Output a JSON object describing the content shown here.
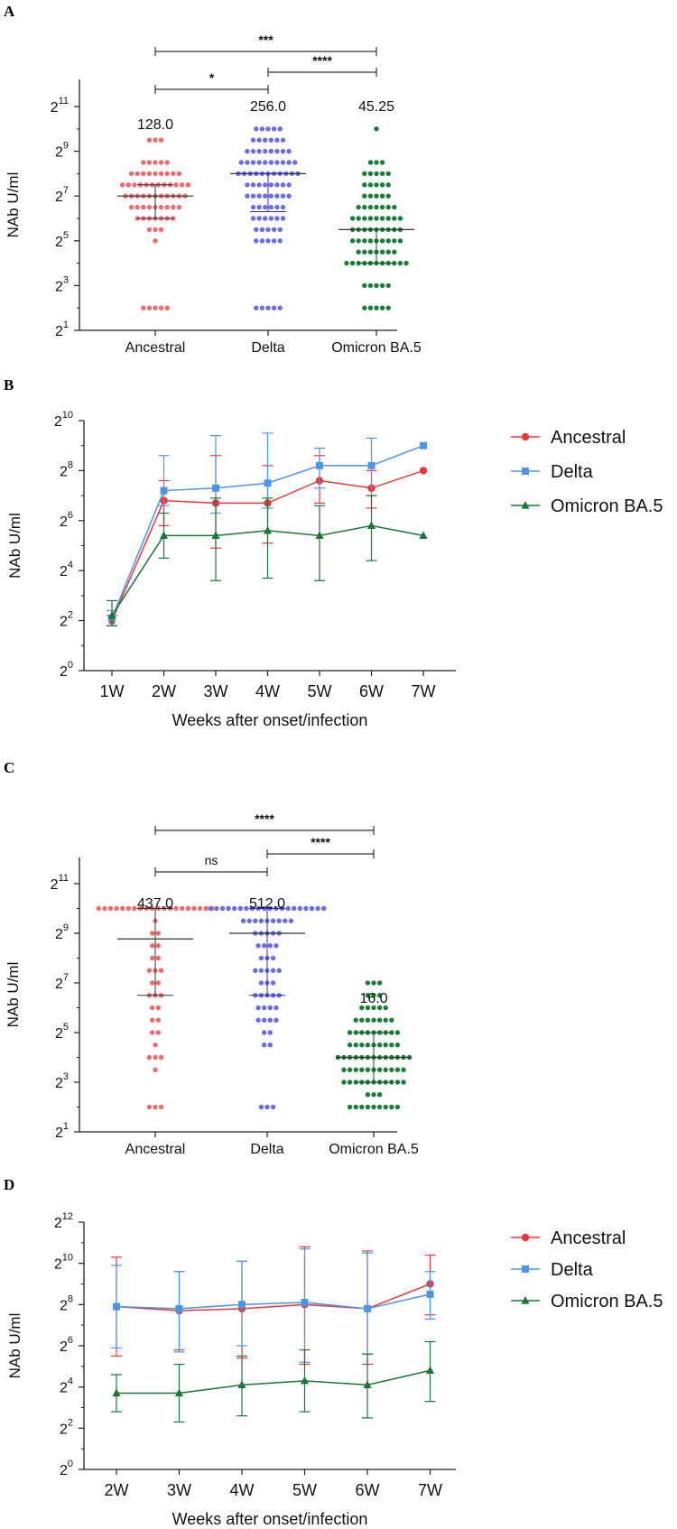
{
  "chart_data": [
    {
      "panel": "A",
      "type": "scatter",
      "ylabel": "NAb U/ml",
      "y_axis": {
        "base": 2,
        "exponents": [
          1,
          3,
          5,
          7,
          9,
          11
        ],
        "ylim_log2": [
          1,
          11.5
        ]
      },
      "categories": [
        "Ancestral",
        "Delta",
        "Omicron BA.5"
      ],
      "colors": {
        "Ancestral": "#ee6b6e",
        "Delta": "#6b6de0",
        "Omicron BA.5": "#1c7d3b"
      },
      "medians": [
        128.0,
        256.0,
        45.25
      ],
      "median_labels": [
        "128.0",
        "256.0",
        "45.25"
      ],
      "iqr_log2": [
        [
          6,
          7.5
        ],
        [
          6.3,
          8
        ],
        [
          4,
          5.5
        ]
      ],
      "log2_distributions": [
        {
          "levels": [
            2,
            5,
            5.5,
            6,
            6.5,
            7,
            7.5,
            8,
            8.5,
            9.5
          ],
          "counts": [
            5,
            1,
            3,
            7,
            9,
            11,
            12,
            9,
            5,
            3
          ]
        },
        {
          "levels": [
            2,
            5,
            5.5,
            6,
            6.5,
            7,
            7.5,
            8,
            8.5,
            9,
            9.5,
            10
          ],
          "counts": [
            5,
            5,
            5,
            6,
            6,
            8,
            8,
            11,
            10,
            8,
            6,
            5
          ]
        },
        {
          "levels": [
            2,
            3,
            4,
            4.5,
            5,
            5.5,
            6,
            6.5,
            7,
            7.5,
            8,
            8.5,
            10
          ],
          "counts": [
            5,
            5,
            11,
            7,
            9,
            9,
            9,
            7,
            5,
            5,
            5,
            3,
            1
          ]
        }
      ],
      "comparisons": [
        {
          "pair": [
            "Ancestral",
            "Delta"
          ],
          "label": "*"
        },
        {
          "pair": [
            "Delta",
            "Omicron BA.5"
          ],
          "label": "****"
        },
        {
          "pair": [
            "Ancestral",
            "Omicron BA.5"
          ],
          "label": "***"
        }
      ]
    },
    {
      "panel": "B",
      "type": "line",
      "ylabel": "NAb U/ml",
      "xlabel": "Weeks after onset/infection",
      "categories": [
        "1W",
        "2W",
        "3W",
        "4W",
        "5W",
        "6W",
        "7W"
      ],
      "y_axis": {
        "base": 2,
        "exponents": [
          0,
          2,
          4,
          6,
          8,
          10
        ],
        "ylim_log2": [
          0,
          10
        ]
      },
      "series": [
        {
          "name": "Ancestral",
          "color": "#e8383d",
          "marker": "circle",
          "values_log2": [
            2.0,
            6.8,
            6.7,
            6.7,
            7.6,
            7.3,
            8.0
          ],
          "errors_log2": [
            [
              1.8,
              2.2
            ],
            [
              5.8,
              7.6
            ],
            [
              4.9,
              8.6
            ],
            [
              5.1,
              8.2
            ],
            [
              6.7,
              8.6
            ],
            [
              6.5,
              8.0
            ],
            null
          ]
        },
        {
          "name": "Delta",
          "color": "#4e95e5",
          "marker": "square",
          "values_log2": [
            2.1,
            7.2,
            7.3,
            7.5,
            8.2,
            8.2,
            9.0
          ],
          "errors_log2": [
            [
              1.8,
              2.4
            ],
            [
              6.6,
              8.6
            ],
            [
              6.3,
              9.4
            ],
            [
              6.5,
              9.5
            ],
            [
              7.3,
              8.9
            ],
            [
              7.0,
              9.3
            ],
            null
          ]
        },
        {
          "name": "Omicron BA.5",
          "color": "#1e7538",
          "marker": "triangle",
          "values_log2": [
            2.2,
            5.4,
            5.4,
            5.6,
            5.4,
            5.8,
            5.4
          ],
          "errors_log2": [
            [
              1.8,
              2.8
            ],
            [
              4.5,
              6.3
            ],
            [
              3.6,
              6.9
            ],
            [
              3.7,
              6.9
            ],
            [
              3.6,
              6.6
            ],
            [
              4.4,
              7.0
            ],
            null
          ]
        }
      ]
    },
    {
      "panel": "C",
      "type": "scatter",
      "ylabel": "NAb U/ml",
      "y_axis": {
        "base": 2,
        "exponents": [
          1,
          3,
          5,
          7,
          9,
          11
        ],
        "ylim_log2": [
          1,
          11.5
        ]
      },
      "categories": [
        "Ancestral",
        "Delta",
        "Omicron BA.5"
      ],
      "colors": {
        "Ancestral": "#ee6b6e",
        "Delta": "#6b6de0",
        "Omicron BA.5": "#1c7d3b"
      },
      "medians": [
        437.0,
        512.0,
        16.0
      ],
      "median_labels": [
        "437.0",
        "512.0",
        "16.0"
      ],
      "iqr_log2": [
        [
          6.5,
          10
        ],
        [
          6.5,
          10
        ],
        [
          3,
          5
        ]
      ],
      "log2_distributions": [
        {
          "levels": [
            2,
            3.5,
            4,
            4.5,
            5,
            5.5,
            6,
            6.5,
            7,
            7.5,
            8,
            8.5,
            9,
            9.5,
            10
          ],
          "counts": [
            3,
            1,
            3,
            1,
            2,
            2,
            2,
            3,
            2,
            3,
            2,
            2,
            2,
            1,
            20
          ]
        },
        {
          "levels": [
            2,
            4.5,
            5,
            5.5,
            6,
            6.5,
            7,
            7.5,
            8,
            8.5,
            9,
            9.5,
            10
          ],
          "counts": [
            3,
            2,
            2,
            4,
            4,
            5,
            3,
            5,
            3,
            4,
            5,
            9,
            20
          ]
        },
        {
          "levels": [
            2,
            2.5,
            3,
            3.5,
            4,
            4.5,
            5,
            5.5,
            6,
            6.5,
            7
          ],
          "counts": [
            9,
            3,
            11,
            11,
            13,
            9,
            9,
            7,
            5,
            3,
            3
          ]
        }
      ],
      "comparisons": [
        {
          "pair": [
            "Ancestral",
            "Delta"
          ],
          "label": "ns"
        },
        {
          "pair": [
            "Delta",
            "Omicron BA.5"
          ],
          "label": "****"
        },
        {
          "pair": [
            "Ancestral",
            "Omicron BA.5"
          ],
          "label": "****"
        }
      ]
    },
    {
      "panel": "D",
      "type": "line",
      "ylabel": "NAb U/ml",
      "xlabel": "Weeks after onset/infection",
      "categories": [
        "2W",
        "3W",
        "4W",
        "5W",
        "6W",
        "7W"
      ],
      "y_axis": {
        "base": 2,
        "exponents": [
          0,
          2,
          4,
          6,
          8,
          10,
          12
        ],
        "ylim_log2": [
          0,
          12
        ]
      },
      "series": [
        {
          "name": "Ancestral",
          "color": "#e8383d",
          "marker": "circle",
          "values_log2": [
            7.9,
            7.7,
            7.8,
            8.0,
            7.8,
            9.0
          ],
          "errors_log2": [
            [
              5.5,
              10.3
            ],
            [
              5.8,
              9.6
            ],
            [
              5.4,
              10.1
            ],
            [
              5.1,
              10.8
            ],
            [
              5.1,
              10.6
            ],
            [
              7.5,
              10.4
            ]
          ]
        },
        {
          "name": "Delta",
          "color": "#4e95e5",
          "marker": "square",
          "values_log2": [
            7.9,
            7.8,
            8.0,
            8.1,
            7.8,
            8.5
          ],
          "errors_log2": [
            [
              5.9,
              9.9
            ],
            [
              5.7,
              9.6
            ],
            [
              6.0,
              10.1
            ],
            [
              5.2,
              10.7
            ],
            [
              5.6,
              10.5
            ],
            [
              7.3,
              9.6
            ]
          ]
        },
        {
          "name": "Omicron BA.5",
          "color": "#1e7538",
          "marker": "triangle",
          "values_log2": [
            3.7,
            3.7,
            4.1,
            4.3,
            4.1,
            4.8
          ],
          "errors_log2": [
            [
              2.8,
              4.6
            ],
            [
              2.3,
              5.1
            ],
            [
              2.6,
              5.5
            ],
            [
              2.8,
              5.8
            ],
            [
              2.5,
              5.6
            ],
            [
              3.3,
              6.2
            ]
          ]
        }
      ]
    }
  ],
  "figure": {
    "panel_letters": [
      "A",
      "B",
      "C",
      "D"
    ],
    "legend_entries": [
      "Ancestral",
      "Delta",
      "Omicron BA.5"
    ]
  }
}
